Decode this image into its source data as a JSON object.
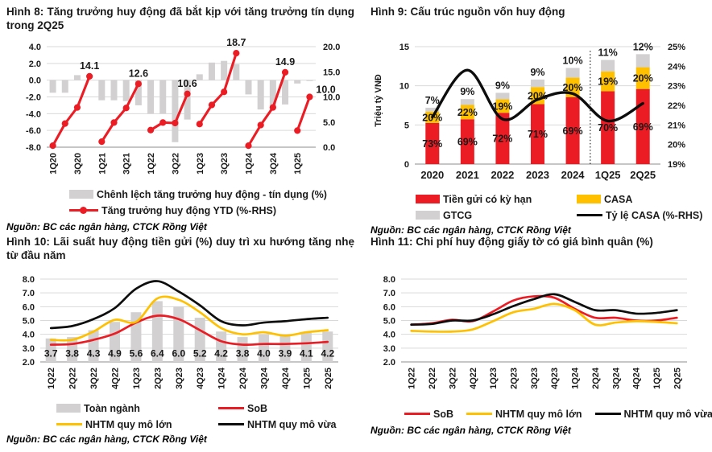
{
  "meta": {
    "source": "Nguồn: BC các ngân hàng, CTCK Rồng Việt"
  },
  "colors": {
    "red": "#EC1C24",
    "yellow": "#FFC000",
    "gray": "#D2D0D0",
    "black": "#0D0D0D",
    "grid": "#D9D9D9",
    "baseline": "#8C8C8C",
    "text": "#1A1A1A"
  },
  "chart_data": [
    {
      "type": "bar+line",
      "title": "Hình 8: Tăng trưởng huy động đã bắt kịp với tăng trưởng tín dụng trong 2Q25",
      "categories": [
        "1Q20",
        "2Q20",
        "3Q20",
        "4Q20",
        "1Q21",
        "2Q21",
        "3Q21",
        "4Q21",
        "1Q22",
        "2Q22",
        "3Q22",
        "4Q22",
        "1Q23",
        "2Q23",
        "3Q23",
        "4Q23",
        "1Q24",
        "2Q24",
        "3Q24",
        "4Q24",
        "1Q25",
        "2Q25"
      ],
      "left_axis": {
        "min": -8,
        "max": 4,
        "ticks": [
          4,
          2,
          0,
          -2,
          -4,
          -6,
          -8
        ],
        "tick_labels": [
          "4.0",
          "2.0",
          "0.0",
          "-2.0",
          "-4.0",
          "-6.0",
          "-8.0"
        ],
        "bar_base": 0
      },
      "right_axis": {
        "min": 0,
        "max": 20,
        "ticks": [
          20,
          15,
          10,
          5,
          0
        ],
        "tick_labels": [
          "20.0",
          "15.0",
          "10.0",
          "5.0",
          "0.0"
        ]
      },
      "legend_position": "bottom",
      "grid": true,
      "series": [
        {
          "name": "Chênh lệch tăng trưởng huy động - tín dụng (%)",
          "type": "bar",
          "axis": "left",
          "color": "gray",
          "values": [
            -1.5,
            -1.5,
            0.6,
            0.0,
            -2.4,
            -2.4,
            -2.5,
            -3.0,
            -4.0,
            -4.0,
            -7.4,
            -4.7,
            0.7,
            2.1,
            2.3,
            1.9,
            -1.7,
            -3.5,
            -3.4,
            -2.9,
            -0.4,
            -0.1
          ]
        },
        {
          "name": "Tăng trưởng huy động YTD (%-RHS)",
          "type": "line",
          "axis": "right",
          "color": "red",
          "marker": true,
          "segments": [
            [
              0,
              3
            ],
            [
              4,
              7
            ],
            [
              8,
              11
            ],
            [
              12,
              15
            ],
            [
              16,
              19
            ],
            [
              20,
              21
            ]
          ],
          "values": [
            0.3,
            4.7,
            7.9,
            14.1,
            1.1,
            4.9,
            7.8,
            12.6,
            3.4,
            4.9,
            4.8,
            10.6,
            4.6,
            8.4,
            11.0,
            18.7,
            0.3,
            4.4,
            7.9,
            14.9,
            3.3,
            10.0
          ],
          "point_labels": [
            {
              "index": 3,
              "text": "14.1"
            },
            {
              "index": 7,
              "text": "12.6"
            },
            {
              "index": 11,
              "text": "10.6"
            },
            {
              "index": 15,
              "text": "18.7"
            },
            {
              "index": 19,
              "text": "14.9"
            },
            {
              "index": 21,
              "text": "10.0",
              "side": "right"
            }
          ]
        }
      ]
    },
    {
      "type": "stacked-bar+line",
      "title": "Hình 9: Cấu trúc nguồn vốn huy động",
      "ylabel": "Triệu tỷ VNĐ",
      "categories": [
        "2020",
        "2021",
        "2022",
        "2023",
        "2024",
        "1Q25",
        "2Q25"
      ],
      "left_axis": {
        "min": 0,
        "max": 15,
        "ticks": [
          15,
          10,
          5,
          0
        ],
        "tick_labels": [
          "15",
          "10",
          "5",
          "0"
        ]
      },
      "right_axis": {
        "min": 19,
        "max": 25,
        "ticks": [
          25,
          24,
          23,
          22,
          21,
          20,
          19
        ],
        "tick_labels": [
          "25%",
          "24%",
          "23%",
          "22%",
          "21%",
          "20%",
          "19%"
        ]
      },
      "totals_trillion_vnd": [
        7.2,
        8.3,
        9.1,
        10.8,
        12.4,
        13.3,
        13.9
      ],
      "separator_before_category": "1Q25",
      "legend_position": "bottom",
      "grid": true,
      "series": [
        {
          "name": "Tiền gửi có kỳ hạn",
          "type": "stack",
          "color": "red",
          "share_pct": [
            73,
            69,
            72,
            71,
            69,
            70,
            69
          ],
          "labels": [
            "73%",
            "69%",
            "72%",
            "71%",
            "69%",
            "70%",
            "69%"
          ]
        },
        {
          "name": "CASA",
          "type": "stack",
          "color": "yellow",
          "share_pct": [
            20,
            22,
            19,
            20,
            20,
            19,
            20
          ],
          "labels": [
            "20%",
            "22%",
            "19%",
            "20%",
            "20%",
            "19%",
            "20%"
          ]
        },
        {
          "name": "GTCG",
          "type": "stack",
          "color": "gray",
          "share_pct": [
            7,
            9,
            9,
            9,
            10,
            11,
            12
          ],
          "labels": [
            "7%",
            "9%",
            "9%",
            "9%",
            "10%",
            "11%",
            "12%"
          ]
        },
        {
          "name": "Tỷ lệ CASA (%-RHS)",
          "type": "line",
          "axis": "right",
          "color": "black",
          "smooth": true,
          "values": [
            21.4,
            23.8,
            21.3,
            22.3,
            22.6,
            21.2,
            22.1
          ]
        }
      ]
    },
    {
      "type": "bar+line",
      "title": "Hình 10: Lãi suất huy động tiền gửi (%) duy trì xu hướng tăng nhẹ từ đầu năm",
      "categories": [
        "1Q22",
        "2Q22",
        "3Q22",
        "4Q22",
        "1Q23",
        "2Q23",
        "3Q23",
        "4Q23",
        "1Q24",
        "2Q24",
        "3Q24",
        "4Q24",
        "1Q25",
        "2Q25"
      ],
      "left_axis": {
        "min": 2,
        "max": 8,
        "ticks": [
          8,
          7,
          6,
          5,
          4,
          3,
          2
        ],
        "tick_labels": [
          "8.0",
          "7.0",
          "6.0",
          "5.0",
          "4.0",
          "3.0",
          "2.0"
        ],
        "bar_base": 2
      },
      "legend_position": "bottom",
      "grid": true,
      "series": [
        {
          "name": "Toàn ngành",
          "type": "bar",
          "axis": "left",
          "color": "gray",
          "values": [
            3.7,
            3.8,
            4.3,
            4.9,
            5.6,
            6.4,
            6.0,
            5.2,
            4.2,
            3.8,
            4.0,
            3.9,
            4.1,
            4.2
          ],
          "value_labels": [
            "3.7",
            "3.8",
            "4.3",
            "4.9",
            "5.6",
            "6.4",
            "6.0",
            "5.2",
            "4.2",
            "3.8",
            "4.0",
            "3.9",
            "4.1",
            "4.2"
          ]
        },
        {
          "name": "SoB",
          "type": "line",
          "axis": "left",
          "color": "red",
          "smooth": true,
          "values": [
            3.25,
            3.3,
            3.6,
            4.05,
            4.85,
            5.35,
            5.1,
            4.3,
            3.5,
            3.25,
            3.3,
            3.3,
            3.35,
            3.45
          ]
        },
        {
          "name": "NHTM quy mô lớn",
          "type": "line",
          "axis": "left",
          "color": "yellow",
          "smooth": true,
          "values": [
            3.6,
            3.6,
            4.2,
            5.05,
            4.9,
            6.6,
            6.5,
            5.6,
            4.45,
            4.0,
            4.15,
            3.9,
            4.15,
            4.3
          ]
        },
        {
          "name": "NHTM quy mô vừa",
          "type": "line",
          "axis": "left",
          "color": "black",
          "smooth": true,
          "values": [
            4.45,
            4.6,
            5.1,
            5.9,
            7.3,
            7.85,
            7.1,
            6.1,
            4.95,
            4.65,
            4.85,
            4.95,
            5.1,
            5.2
          ]
        }
      ]
    },
    {
      "type": "line",
      "title": "Hình 11: Chi phí huy động giấy tờ có giá bình quân (%)",
      "categories": [
        "1Q22",
        "2Q22",
        "3Q22",
        "4Q22",
        "1Q23",
        "2Q23",
        "3Q23",
        "4Q23",
        "1Q24",
        "2Q24",
        "3Q24",
        "4Q24",
        "1Q25",
        "2Q25"
      ],
      "left_axis": {
        "min": 2,
        "max": 8,
        "ticks": [
          8,
          7,
          6,
          5,
          4,
          3,
          2
        ],
        "tick_labels": [
          "8.0",
          "7.0",
          "6.0",
          "5.0",
          "4.0",
          "3.0",
          "2.0"
        ]
      },
      "legend_position": "bottom",
      "grid": true,
      "series": [
        {
          "name": "SoB",
          "type": "line",
          "axis": "left",
          "color": "red",
          "smooth": true,
          "values": [
            4.7,
            4.8,
            5.05,
            4.95,
            5.65,
            6.45,
            6.75,
            6.65,
            5.85,
            5.2,
            5.2,
            5.0,
            5.0,
            5.2
          ]
        },
        {
          "name": "NHTM quy mô lớn",
          "type": "line",
          "axis": "left",
          "color": "yellow",
          "smooth": true,
          "values": [
            4.25,
            4.2,
            4.2,
            4.35,
            4.95,
            5.6,
            5.85,
            6.2,
            5.75,
            4.7,
            4.85,
            4.95,
            4.9,
            4.8
          ]
        },
        {
          "name": "NHTM quy mô vừa",
          "type": "line",
          "axis": "left",
          "color": "black",
          "smooth": true,
          "values": [
            4.7,
            4.75,
            5.0,
            5.0,
            5.45,
            6.05,
            6.55,
            6.9,
            6.35,
            5.75,
            5.75,
            5.5,
            5.55,
            5.75
          ]
        }
      ]
    }
  ]
}
